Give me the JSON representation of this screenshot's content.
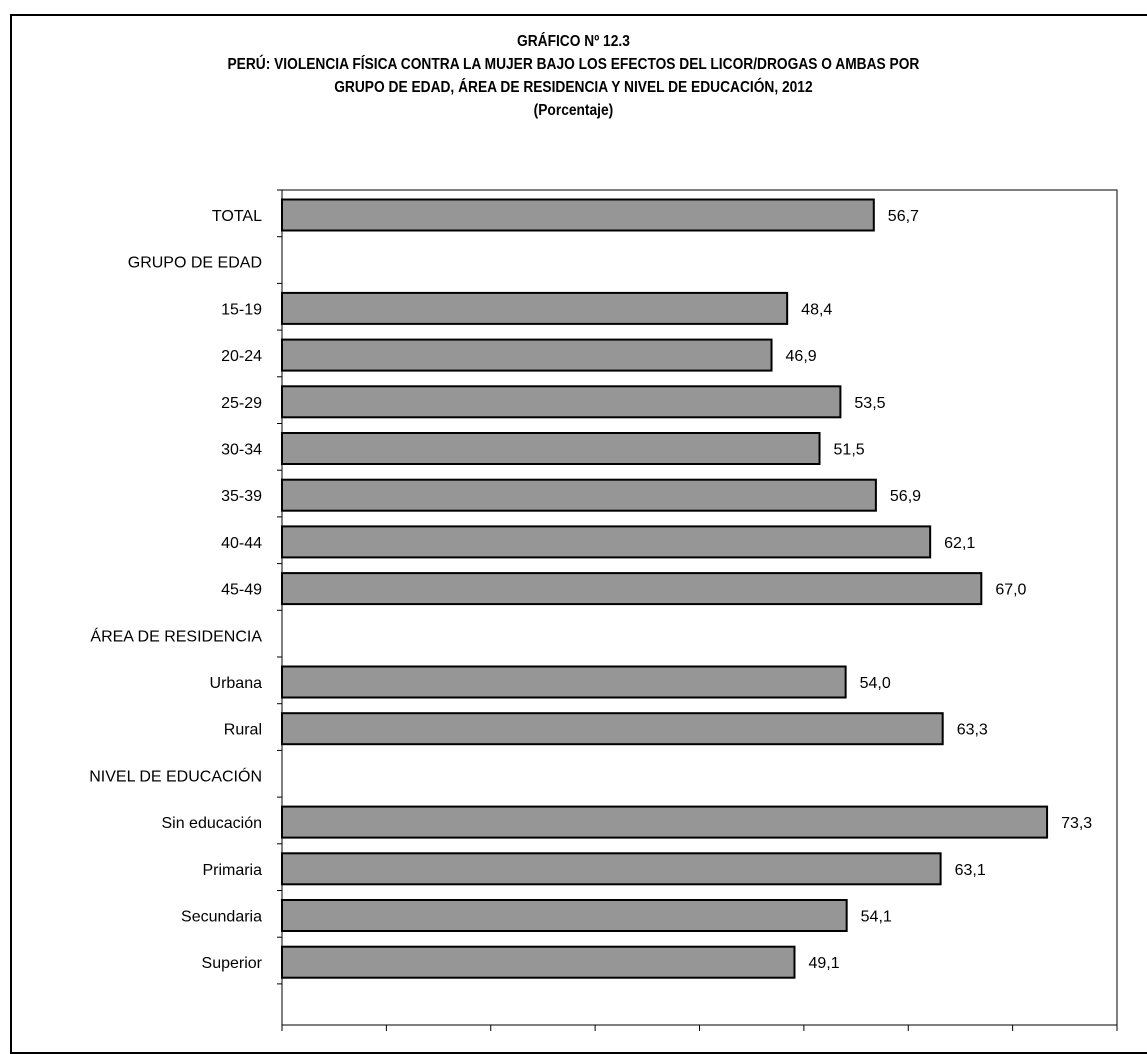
{
  "chart_data": {
    "type": "bar",
    "orientation": "horizontal",
    "title": "GRÁFICO Nº 12.3",
    "subtitle_lines": [
      "PERÚ: VIOLENCIA FÍSICA CONTRA LA MUJER  BAJO LOS  EFECTOS DEL LICOR/DROGAS O AMBAS POR",
      "GRUPO DE EDAD, ÁREA  DE RESIDENCIA Y NIVEL DE EDUCACIÓN, 2012",
      "(Porcentaje)"
    ],
    "categories": [
      "TOTAL",
      "GRUPO DE EDAD",
      "15-19",
      "20-24",
      "25-29",
      "30-34",
      "35-39",
      "40-44",
      "45-49",
      "ÁREA DE RESIDENCIA",
      "Urbana",
      "Rural",
      "NIVEL DE EDUCACIÓN",
      "Sin educación",
      "Primaria",
      "Secundaria",
      "Superior"
    ],
    "values": [
      56.7,
      null,
      48.4,
      46.9,
      53.5,
      51.5,
      56.9,
      62.1,
      67.0,
      null,
      54.0,
      63.3,
      null,
      73.3,
      63.1,
      54.1,
      49.1
    ],
    "value_labels": [
      "56,7",
      "",
      "48,4",
      "46,9",
      "53,5",
      "51,5",
      "56,9",
      "62,1",
      "67,0",
      "",
      "54,0",
      "63,3",
      "",
      "73,3",
      "63,1",
      "54,1",
      "49,1"
    ],
    "xlim": [
      0,
      80
    ],
    "xticks": [
      "0",
      "10",
      "20",
      "30",
      "40",
      "50",
      "60",
      "70",
      "80"
    ],
    "grid": false,
    "bar_color": "#969696"
  }
}
